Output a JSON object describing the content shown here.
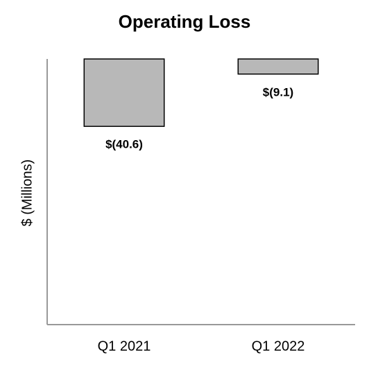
{
  "chart_data": {
    "type": "bar",
    "title": "Operating Loss",
    "y_label": "$ (Millions)",
    "categories": [
      "Q1 2021",
      "Q1 2022"
    ],
    "values": [
      -40.6,
      -9.1
    ],
    "value_labels": [
      "$(40.6)",
      "$(9.1)"
    ],
    "color": "#b8b8b8",
    "ylim": [
      -160,
      0
    ]
  }
}
